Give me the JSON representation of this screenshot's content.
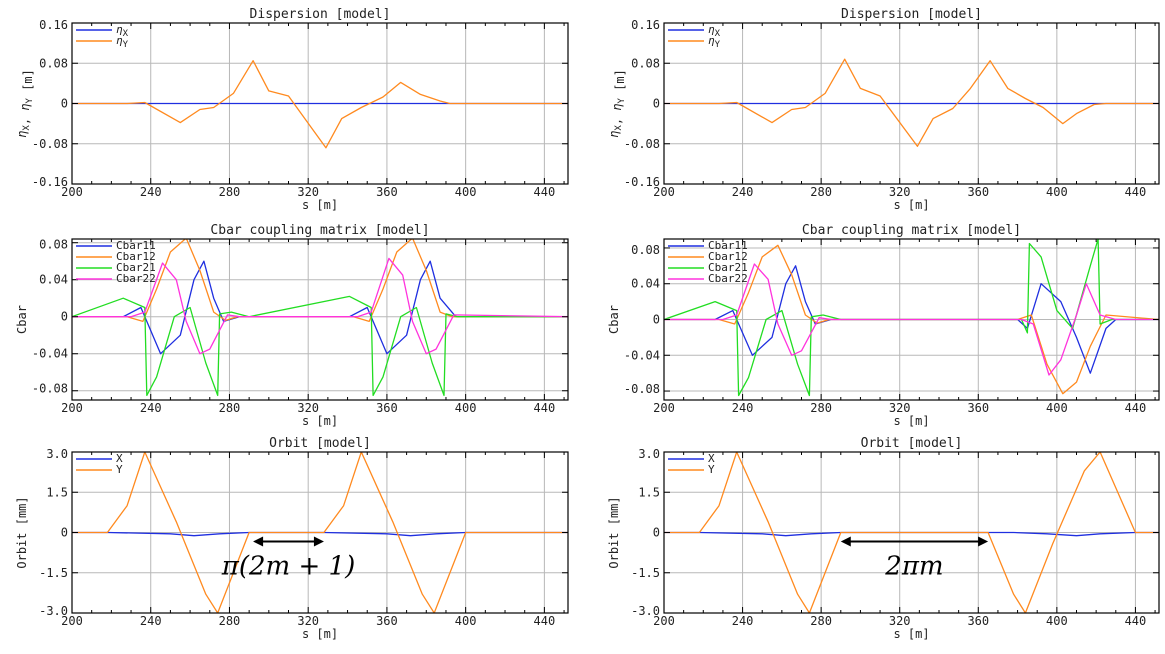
{
  "colors": {
    "blue": "#1f2fe0",
    "orange": "#ff8a1f",
    "green": "#22dd22",
    "magenta": "#ff33dd",
    "grid": "#b8b8b8",
    "frame": "#000000",
    "annotation_arrow": "#000000"
  },
  "chart_data": [
    {
      "id": "left-dispersion",
      "type": "line",
      "title": "Dispersion [model]",
      "xlabel": "s [m]",
      "ylabel": "ηX, ηY [m]",
      "xlim": [
        200,
        452
      ],
      "ylim": [
        -0.16,
        0.16
      ],
      "xticks": [
        200,
        240,
        280,
        320,
        360,
        400,
        440
      ],
      "yticks": [
        -0.16,
        -0.08,
        0,
        0.08,
        0.16
      ],
      "ytick_labels": [
        "-0.16",
        "-0.08",
        "0",
        "0.08",
        "0.16"
      ],
      "grid": true,
      "legend_position": "top-left",
      "series": [
        {
          "name": "ηX",
          "color": "blue",
          "x": [
            200,
            452
          ],
          "y": [
            0,
            0
          ]
        },
        {
          "name": "ηY",
          "color": "orange",
          "x": [
            200,
            228,
            237,
            255,
            265,
            272,
            282,
            292,
            300,
            310,
            329,
            337,
            347,
            358,
            367,
            377,
            387,
            392,
            452
          ],
          "y": [
            0,
            0,
            0.002,
            -0.038,
            -0.012,
            -0.008,
            0.02,
            0.085,
            0.025,
            0.015,
            -0.088,
            -0.03,
            -0.008,
            0.013,
            0.042,
            0.018,
            0.005,
            0,
            0
          ]
        }
      ]
    },
    {
      "id": "left-cbar",
      "type": "line",
      "title": "Cbar coupling matrix [model]",
      "xlabel": "s [m]",
      "ylabel": "Cbar",
      "xlim": [
        200,
        452
      ],
      "ylim": [
        -0.09,
        0.084
      ],
      "xticks": [
        200,
        240,
        280,
        320,
        360,
        400,
        440
      ],
      "yticks": [
        -0.08,
        -0.04,
        0,
        0.04,
        0.08
      ],
      "ytick_labels": [
        "-0.08",
        "-0.04",
        "0",
        "0.04",
        "0.08"
      ],
      "grid": true,
      "legend_position": "top-left",
      "series": [
        {
          "name": "Cbar11",
          "color": "blue",
          "x": [
            200,
            226,
            235,
            245,
            255,
            262,
            267,
            272,
            277,
            285,
            341,
            350,
            360,
            370,
            377,
            382,
            387,
            395,
            452
          ],
          "y": [
            0,
            0,
            0.01,
            -0.04,
            -0.02,
            0.04,
            0.06,
            0.02,
            -0.005,
            0,
            0,
            0.01,
            -0.04,
            -0.02,
            0.04,
            0.06,
            0.02,
            0,
            0
          ]
        },
        {
          "name": "Cbar12",
          "color": "orange",
          "x": [
            200,
            228,
            236,
            243,
            250,
            258,
            265,
            272,
            278,
            284,
            343,
            351,
            358,
            365,
            373,
            380,
            387,
            393,
            452
          ],
          "y": [
            0,
            0,
            -0.005,
            0.03,
            0.07,
            0.085,
            0.05,
            0.005,
            -0.004,
            0,
            0,
            -0.005,
            0.03,
            0.07,
            0.085,
            0.05,
            0.005,
            0,
            0
          ]
        },
        {
          "name": "Cbar21",
          "color": "green",
          "x": [
            200,
            226,
            237,
            238,
            243,
            252,
            260,
            268,
            274,
            275,
            281,
            290,
            341,
            352,
            353,
            358,
            367,
            375,
            383,
            389,
            390,
            396,
            452
          ],
          "y": [
            0,
            0.02,
            0.01,
            -0.085,
            -0.065,
            0.0,
            0.01,
            -0.05,
            -0.085,
            0.003,
            0.005,
            0,
            0.022,
            0.01,
            -0.085,
            -0.065,
            0.0,
            0.01,
            -0.05,
            -0.085,
            0.003,
            0,
            0
          ]
        },
        {
          "name": "Cbar22",
          "color": "magenta",
          "x": [
            200,
            230,
            237,
            246,
            253,
            258,
            265,
            270,
            279,
            285,
            345,
            352,
            361,
            368,
            373,
            380,
            385,
            394,
            452
          ],
          "y": [
            0,
            0,
            0.005,
            0.058,
            0.04,
            -0.005,
            -0.04,
            -0.035,
            0.002,
            0,
            0,
            0.005,
            0.063,
            0.045,
            -0.005,
            -0.04,
            -0.035,
            0.002,
            0
          ]
        }
      ]
    },
    {
      "id": "left-orbit",
      "type": "line",
      "title": "Orbit [model]",
      "xlabel": "s [m]",
      "ylabel": "Orbit [mm]",
      "xlim": [
        200,
        452
      ],
      "ylim": [
        -3.0,
        3.0
      ],
      "xticks": [
        200,
        240,
        280,
        320,
        360,
        400,
        440
      ],
      "yticks": [
        -3.0,
        -1.5,
        0,
        1.5,
        3.0
      ],
      "ytick_labels": [
        "-3.0",
        "-1.5",
        "0",
        "1.5",
        "3.0"
      ],
      "grid": true,
      "legend_position": "top-left",
      "series": [
        {
          "name": "X",
          "color": "blue",
          "x": [
            200,
            218,
            250,
            262,
            275,
            290,
            310,
            328,
            360,
            372,
            385,
            400,
            452
          ],
          "y": [
            0,
            0,
            -0.05,
            -0.12,
            -0.05,
            0,
            0,
            0,
            -0.05,
            -0.12,
            -0.05,
            0,
            0
          ]
        },
        {
          "name": "Y",
          "color": "orange",
          "x": [
            200,
            218,
            228,
            237,
            253,
            268,
            274,
            290,
            328,
            338,
            347,
            363,
            378,
            384,
            400,
            452
          ],
          "y": [
            0,
            0,
            1.0,
            3.0,
            0.4,
            -2.3,
            -3.0,
            0,
            0,
            1.0,
            3.0,
            0.4,
            -2.3,
            -3.0,
            0,
            0
          ]
        }
      ],
      "annotation": {
        "text": "π(2m + 1)",
        "x_from": 292,
        "x_to": 328,
        "y": 0.0
      }
    },
    {
      "id": "right-dispersion",
      "type": "line",
      "title": "Dispersion [model]",
      "xlabel": "s [m]",
      "ylabel": "ηX, ηY [m]",
      "xlim": [
        200,
        452
      ],
      "ylim": [
        -0.16,
        0.16
      ],
      "xticks": [
        200,
        240,
        280,
        320,
        360,
        400,
        440
      ],
      "yticks": [
        -0.16,
        -0.08,
        0,
        0.08,
        0.16
      ],
      "ytick_labels": [
        "-0.16",
        "-0.08",
        "0",
        "0.08",
        "0.16"
      ],
      "grid": true,
      "legend_position": "top-left",
      "series": [
        {
          "name": "ηX",
          "color": "blue",
          "x": [
            200,
            452
          ],
          "y": [
            0,
            0
          ]
        },
        {
          "name": "ηY",
          "color": "orange",
          "x": [
            200,
            228,
            237,
            255,
            265,
            272,
            282,
            292,
            300,
            310,
            329,
            337,
            347,
            356,
            366,
            375,
            384,
            393,
            403,
            410,
            419,
            425,
            452
          ],
          "y": [
            0,
            0,
            0.002,
            -0.038,
            -0.012,
            -0.008,
            0.02,
            0.088,
            0.03,
            0.015,
            -0.085,
            -0.03,
            -0.01,
            0.03,
            0.085,
            0.03,
            0.01,
            -0.008,
            -0.04,
            -0.02,
            -0.002,
            0,
            0
          ]
        }
      ]
    },
    {
      "id": "right-cbar",
      "type": "line",
      "title": "Cbar coupling matrix [model]",
      "xlabel": "s [m]",
      "ylabel": "Cbar",
      "xlim": [
        200,
        452
      ],
      "ylim": [
        -0.09,
        0.09
      ],
      "xticks": [
        200,
        240,
        280,
        320,
        360,
        400,
        440
      ],
      "yticks": [
        -0.08,
        -0.04,
        0,
        0.04,
        0.08
      ],
      "ytick_labels": [
        "-0.08",
        "-0.04",
        "0",
        "0.04",
        "0.08"
      ],
      "grid": true,
      "legend_position": "top-left",
      "series": [
        {
          "name": "Cbar11",
          "color": "blue",
          "x": [
            200,
            226,
            235,
            245,
            255,
            262,
            267,
            272,
            277,
            285,
            380,
            385,
            392,
            402,
            410,
            417,
            425,
            430,
            452
          ],
          "y": [
            0,
            0,
            0.01,
            -0.04,
            -0.02,
            0.04,
            0.06,
            0.02,
            -0.005,
            0,
            0,
            -0.01,
            0.04,
            0.02,
            -0.02,
            -0.06,
            -0.01,
            0,
            0
          ]
        },
        {
          "name": "Cbar12",
          "color": "orange",
          "x": [
            200,
            228,
            236,
            243,
            250,
            258,
            265,
            272,
            278,
            284,
            380,
            387,
            395,
            403,
            410,
            417,
            425,
            452
          ],
          "y": [
            0,
            0,
            -0.005,
            0.03,
            0.07,
            0.083,
            0.05,
            0.005,
            -0.004,
            0,
            0,
            0.005,
            -0.05,
            -0.083,
            -0.07,
            -0.03,
            0.005,
            0
          ]
        },
        {
          "name": "Cbar21",
          "color": "green",
          "x": [
            200,
            226,
            237,
            238,
            243,
            252,
            260,
            268,
            274,
            275,
            281,
            290,
            382,
            385,
            386,
            392,
            400,
            408,
            417,
            421,
            422,
            428,
            452
          ],
          "y": [
            0,
            0.02,
            0.01,
            -0.085,
            -0.065,
            0.0,
            0.01,
            -0.05,
            -0.085,
            0.003,
            0.005,
            0,
            0,
            -0.015,
            0.085,
            0.07,
            0.01,
            -0.01,
            0.06,
            0.09,
            -0.005,
            0,
            0
          ]
        },
        {
          "name": "Cbar22",
          "color": "magenta",
          "x": [
            200,
            230,
            237,
            246,
            253,
            258,
            265,
            270,
            279,
            285,
            382,
            388,
            396,
            402,
            410,
            415,
            422,
            430,
            452
          ],
          "y": [
            0,
            0,
            0.005,
            0.062,
            0.045,
            -0.005,
            -0.04,
            -0.035,
            0.002,
            0,
            0,
            -0.005,
            -0.062,
            -0.045,
            0.005,
            0.04,
            0.005,
            0,
            0
          ]
        }
      ]
    },
    {
      "id": "right-orbit",
      "type": "line",
      "title": "Orbit [model]",
      "xlabel": "s [m]",
      "ylabel": "Orbit [mm]",
      "xlim": [
        200,
        452
      ],
      "ylim": [
        -3.0,
        3.0
      ],
      "xticks": [
        200,
        240,
        280,
        320,
        360,
        400,
        440
      ],
      "yticks": [
        -3.0,
        -1.5,
        0,
        1.5,
        3.0
      ],
      "ytick_labels": [
        "-3.0",
        "-1.5",
        "0",
        "1.5",
        "3.0"
      ],
      "grid": true,
      "legend_position": "top-left",
      "series": [
        {
          "name": "X",
          "color": "blue",
          "x": [
            200,
            218,
            250,
            262,
            275,
            290,
            365,
            378,
            395,
            410,
            422,
            440,
            452
          ],
          "y": [
            0,
            0,
            -0.05,
            -0.12,
            -0.05,
            0,
            0,
            0,
            -0.05,
            -0.12,
            -0.05,
            0,
            0
          ]
        },
        {
          "name": "Y",
          "color": "orange",
          "x": [
            200,
            218,
            228,
            237,
            253,
            268,
            274,
            290,
            365,
            378,
            384,
            398,
            414,
            422,
            440,
            452
          ],
          "y": [
            0,
            0,
            1.0,
            3.0,
            0.4,
            -2.3,
            -3.0,
            0,
            0,
            -2.3,
            -3.0,
            -0.4,
            2.3,
            3.0,
            0,
            0
          ]
        }
      ],
      "annotation": {
        "text": "2πm",
        "x_from": 290,
        "x_to": 365,
        "y": 0.0
      }
    }
  ]
}
